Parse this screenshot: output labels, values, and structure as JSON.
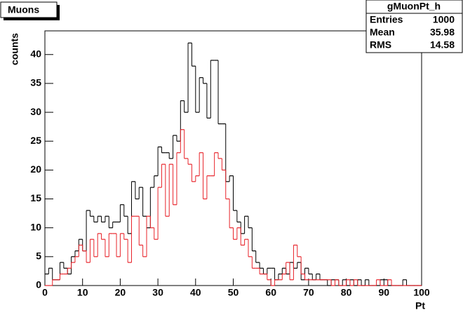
{
  "chart_data": {
    "type": "histogram",
    "title": "Muons",
    "x_label": "Pt",
    "y_label": "counts",
    "bins": [
      0,
      1,
      2,
      3,
      4,
      5,
      6,
      7,
      8,
      9,
      10,
      11,
      12,
      13,
      14,
      15,
      16,
      17,
      18,
      19,
      20,
      21,
      22,
      23,
      24,
      25,
      26,
      27,
      28,
      29,
      30,
      31,
      32,
      33,
      34,
      35,
      36,
      37,
      38,
      39,
      40,
      41,
      42,
      43,
      44,
      45,
      46,
      47,
      48,
      49,
      50,
      51,
      52,
      53,
      54,
      55,
      56,
      57,
      58,
      59,
      60,
      61,
      62,
      63,
      64,
      65,
      66,
      67,
      68,
      69,
      70,
      71,
      72,
      73,
      74,
      75,
      76,
      77,
      78,
      79,
      80,
      81,
      82,
      83,
      84,
      85,
      86,
      87,
      88,
      89,
      90,
      91,
      92,
      93,
      94,
      95,
      96,
      97,
      98,
      99,
      100
    ],
    "series": [
      {
        "color": "#000000",
        "values": [
          2,
          3,
          1,
          1,
          4,
          3,
          2,
          5,
          6,
          8,
          6,
          13,
          12,
          11,
          12,
          11,
          12,
          10,
          11,
          11,
          14,
          12,
          9,
          18,
          15,
          17,
          12,
          10,
          17,
          19,
          24,
          23,
          23,
          22,
          26,
          25,
          32,
          30,
          42,
          38,
          30,
          36,
          35,
          29,
          39,
          39,
          28,
          28,
          18,
          19,
          13,
          11,
          9,
          12,
          10,
          6,
          4,
          3,
          2,
          3,
          3,
          1,
          2,
          3,
          2,
          4,
          3,
          4,
          1,
          3,
          2,
          1,
          2,
          1,
          1,
          0,
          1,
          1,
          0,
          1,
          0,
          1,
          0,
          1,
          0,
          1,
          0,
          0,
          0,
          1,
          1,
          0,
          0,
          0,
          0,
          1,
          0,
          0,
          0,
          0
        ]
      },
      {
        "color": "#e8232a",
        "values": [
          0,
          0,
          1,
          1,
          2,
          2,
          3,
          4,
          5,
          7,
          6,
          4,
          8,
          5,
          9,
          8,
          5,
          9,
          9,
          5,
          9,
          8,
          4,
          12,
          12,
          7,
          5,
          12,
          10,
          8,
          17,
          21,
          12,
          21,
          14,
          23,
          27,
          22,
          21,
          18,
          19,
          23,
          15,
          19,
          19,
          23,
          22,
          20,
          15,
          10,
          8,
          10,
          7,
          8,
          5,
          3,
          3,
          2,
          2,
          1,
          0,
          1,
          1,
          2,
          4,
          1,
          7,
          5,
          2,
          1,
          1,
          1,
          1,
          1,
          1,
          1,
          0,
          1,
          0,
          0,
          1,
          0,
          1,
          0,
          0,
          0,
          0,
          0,
          1,
          0,
          0,
          1,
          0,
          0,
          0,
          0,
          0,
          0,
          0,
          0
        ]
      }
    ],
    "xlim": [
      0,
      100
    ],
    "xticks": [
      0,
      10,
      20,
      30,
      40,
      50,
      60,
      70,
      80,
      90,
      100
    ],
    "ylim": [
      0,
      44.1
    ],
    "yticks": [
      0,
      5,
      10,
      15,
      20,
      25,
      30,
      35,
      40
    ],
    "stats": {
      "name": "gMuonPt_h",
      "rows": [
        [
          "Entries",
          "1000"
        ],
        [
          "Mean",
          "35.98"
        ],
        [
          "RMS",
          "14.58"
        ]
      ]
    }
  }
}
